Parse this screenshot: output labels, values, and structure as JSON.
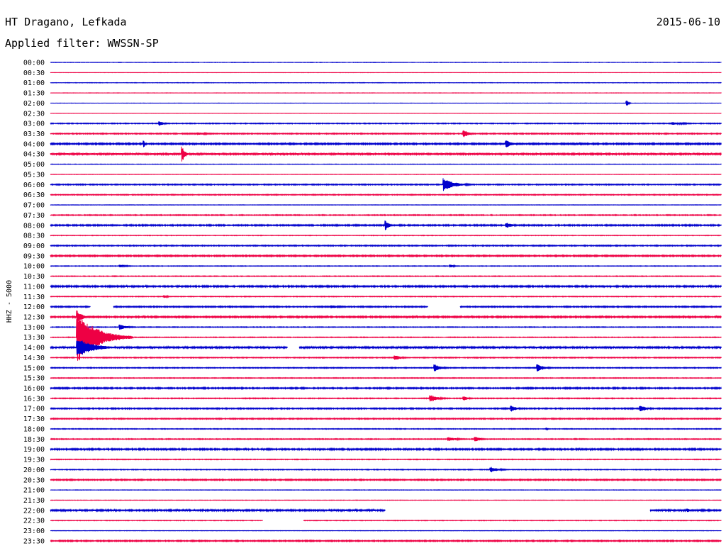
{
  "header": {
    "station": "HT Dragano, Lefkada",
    "date": "2015-06-10",
    "filter": "Applied filter: WWSSN-SP"
  },
  "colors": {
    "even": "#0000cc",
    "odd": "#ee0044",
    "background": "#ffffff"
  },
  "chart_data": {
    "type": "line",
    "title": "HT Dragano, Lefkada",
    "subtitle": "Applied filter: WWSSN-SP",
    "ylabel": "HHZ - 5000",
    "xlabel": "",
    "grid": false,
    "legend": "none",
    "x_unit": "minutes within 30-min trace",
    "xlim": [
      0,
      30
    ],
    "rows": [
      "00:00",
      "00:30",
      "01:00",
      "01:30",
      "02:00",
      "02:30",
      "03:00",
      "03:30",
      "04:00",
      "04:30",
      "05:00",
      "05:30",
      "06:00",
      "06:30",
      "07:00",
      "07:30",
      "08:00",
      "08:30",
      "09:00",
      "09:30",
      "10:00",
      "10:30",
      "11:00",
      "11:30",
      "12:00",
      "12:30",
      "13:00",
      "13:30",
      "14:00",
      "14:30",
      "15:00",
      "15:30",
      "16:00",
      "16:30",
      "17:00",
      "17:30",
      "18:00",
      "18:30",
      "19:00",
      "19:30",
      "20:00",
      "20:30",
      "21:00",
      "21:30",
      "22:00",
      "22:30",
      "23:00",
      "23:30"
    ],
    "noise": [
      0.3,
      0.2,
      0.3,
      0.2,
      0.2,
      0.2,
      0.6,
      0.7,
      1.0,
      1.2,
      0.3,
      0.3,
      0.7,
      0.6,
      0.3,
      0.6,
      0.9,
      0.4,
      0.7,
      0.9,
      0.4,
      0.5,
      1.0,
      0.5,
      0.8,
      1.0,
      0.5,
      0.5,
      1.2,
      0.6,
      0.6,
      0.5,
      0.9,
      0.6,
      0.8,
      0.7,
      0.5,
      0.6,
      1.0,
      0.5,
      0.5,
      0.8,
      0.3,
      0.3,
      1.1,
      0.4,
      0.3,
      0.8
    ],
    "events": [
      {
        "row": "02:00",
        "t": 25.8,
        "a": 4,
        "d": 0.2
      },
      {
        "row": "03:00",
        "t": 4.9,
        "a": 3,
        "d": 0.6
      },
      {
        "row": "03:00",
        "t": 27.8,
        "a": 2,
        "d": 2.0
      },
      {
        "row": "03:30",
        "t": 18.5,
        "a": 6,
        "d": 0.6
      },
      {
        "row": "03:30",
        "t": 6.6,
        "a": 2,
        "d": 1.5
      },
      {
        "row": "04:00",
        "t": 20.4,
        "a": 5,
        "d": 0.8
      },
      {
        "row": "04:00",
        "t": 4.2,
        "a": 5,
        "d": 0.1
      },
      {
        "row": "04:30",
        "t": 5.9,
        "a": 11,
        "d": 0.4
      },
      {
        "row": "06:00",
        "t": 17.6,
        "a": 9,
        "d": 1.4
      },
      {
        "row": "08:00",
        "t": 15.0,
        "a": 8,
        "d": 0.4
      },
      {
        "row": "08:00",
        "t": 20.4,
        "a": 4,
        "d": 0.8
      },
      {
        "row": "10:00",
        "t": 3.1,
        "a": 2,
        "d": 1.0
      },
      {
        "row": "10:00",
        "t": 17.9,
        "a": 2,
        "d": 0.6
      },
      {
        "row": "11:30",
        "t": 5.1,
        "a": 2,
        "d": 0.5
      },
      {
        "row": "12:00",
        "t": 12.6,
        "a": 2,
        "d": 1.5
      },
      {
        "row": "12:30",
        "t": 1.2,
        "a": 10,
        "d": 0.6
      },
      {
        "row": "13:00",
        "t": 3.1,
        "a": 4,
        "d": 1.0
      },
      {
        "row": "13:30",
        "t": 1.2,
        "a": 36,
        "d": 2.5
      },
      {
        "row": "14:00",
        "t": 1.2,
        "a": 14,
        "d": 2.0
      },
      {
        "row": "14:30",
        "t": 15.4,
        "a": 4,
        "d": 0.8
      },
      {
        "row": "15:00",
        "t": 17.2,
        "a": 5,
        "d": 0.8
      },
      {
        "row": "15:00",
        "t": 21.8,
        "a": 5,
        "d": 0.9
      },
      {
        "row": "16:30",
        "t": 17.0,
        "a": 5,
        "d": 1.0
      },
      {
        "row": "16:30",
        "t": 18.5,
        "a": 3,
        "d": 0.6
      },
      {
        "row": "17:00",
        "t": 20.6,
        "a": 5,
        "d": 0.7
      },
      {
        "row": "17:00",
        "t": 26.4,
        "a": 5,
        "d": 0.8
      },
      {
        "row": "18:00",
        "t": 22.2,
        "a": 2,
        "d": 0.2
      },
      {
        "row": "18:30",
        "t": 17.8,
        "a": 3,
        "d": 1.2
      },
      {
        "row": "18:30",
        "t": 19.0,
        "a": 4,
        "d": 0.7
      },
      {
        "row": "20:00",
        "t": 19.7,
        "a": 4,
        "d": 1.0
      },
      {
        "row": "22:00",
        "t": 28.5,
        "a": 3,
        "d": 0.4
      }
    ],
    "gaps": [
      {
        "row": "12:00",
        "from": 1.8,
        "to": 2.8
      },
      {
        "row": "12:00",
        "from": 16.9,
        "to": 18.3
      },
      {
        "row": "14:00",
        "from": 10.6,
        "to": 11.1
      },
      {
        "row": "22:00",
        "from": 15.0,
        "to": 26.8
      },
      {
        "row": "22:30",
        "from": 9.5,
        "to": 11.3
      }
    ]
  }
}
